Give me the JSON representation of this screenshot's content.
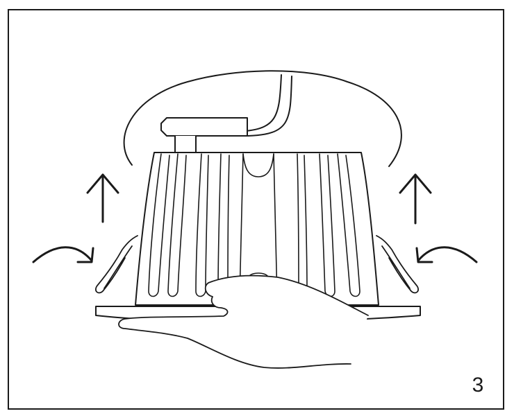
{
  "diagram": {
    "step_number": "3",
    "stroke_color": "#1a1a1a",
    "fill_color": "#ffffff",
    "arrow_icons": [
      "arrow-up-icon",
      "curved-arrow-icon"
    ]
  }
}
